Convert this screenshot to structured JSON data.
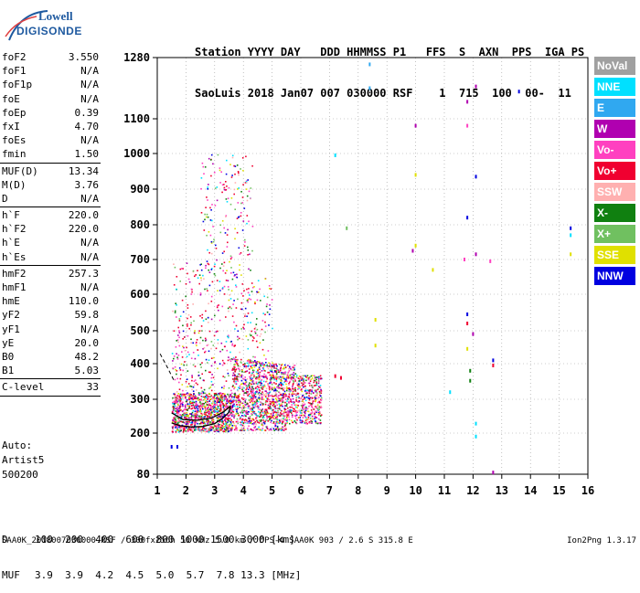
{
  "logo": {
    "line1": "Lowell",
    "line2": "DIGISONDE"
  },
  "header": {
    "line1": "Station YYYY DAY   DDD HHMMSS P1   FFS  S  AXN  PPS  IGA PS",
    "line2": "SaoLuis 2018 Jan07 007 030000 RSF    1  715  100  00-  11"
  },
  "params": {
    "group1": [
      {
        "name": "foF2",
        "value": "3.550"
      },
      {
        "name": "foF1",
        "value": "N/A"
      },
      {
        "name": "foF1p",
        "value": "N/A"
      },
      {
        "name": "foE",
        "value": "N/A"
      },
      {
        "name": "foEp",
        "value": "0.39"
      },
      {
        "name": "fxI",
        "value": "4.70"
      },
      {
        "name": "foEs",
        "value": "N/A"
      },
      {
        "name": "fmin",
        "value": "1.50"
      }
    ],
    "group2": [
      {
        "name": "MUF(D)",
        "value": "13.34"
      },
      {
        "name": "M(D)",
        "value": "3.76"
      },
      {
        "name": "D",
        "value": "N/A"
      }
    ],
    "group3": [
      {
        "name": "h`F",
        "value": "220.0"
      },
      {
        "name": "h`F2",
        "value": "220.0"
      },
      {
        "name": "h`E",
        "value": "N/A"
      },
      {
        "name": "h`Es",
        "value": "N/A"
      }
    ],
    "group4": [
      {
        "name": "hmF2",
        "value": "257.3"
      },
      {
        "name": "hmF1",
        "value": "N/A"
      },
      {
        "name": "hmE",
        "value": "110.0"
      },
      {
        "name": "yF2",
        "value": "59.8"
      },
      {
        "name": "yF1",
        "value": "N/A"
      },
      {
        "name": "yE",
        "value": "20.0"
      },
      {
        "name": "B0",
        "value": "48.2"
      },
      {
        "name": "B1",
        "value": "5.03"
      }
    ],
    "group5": [
      {
        "name": "C-level",
        "value": "33"
      }
    ]
  },
  "auto": {
    "line1": "Auto:",
    "line2": "Artist5",
    "line3": "500200"
  },
  "muf_table": {
    "d_label": "D",
    "d_values": "100  200  400  600  800 1000 1500 3000 [km]",
    "m_label": "MUF",
    "m_values": "3.9  3.9  4.2  4.5  5.0  5.7  7.8 13.3 [MHz]"
  },
  "footer": {
    "left": "SAA0K_2018007030000.RSF / 300fx256h 50 kHz 5.0 km / DPS-4 SAA0K 903 / 2.6 S 315.8 E",
    "right": "Ion2Png 1.3.17"
  },
  "legend": [
    {
      "label": "NoVal",
      "color": "#a0a0a0"
    },
    {
      "label": "NNE",
      "color": "#00e0ff"
    },
    {
      "label": "E",
      "color": "#30a8f0"
    },
    {
      "label": "W",
      "color": "#b000b0"
    },
    {
      "label": "Vo-",
      "color": "#ff40c0"
    },
    {
      "label": "Vo+",
      "color": "#f00030"
    },
    {
      "label": "SSW",
      "color": "#ffb0b0"
    },
    {
      "label": "X-",
      "color": "#108010"
    },
    {
      "label": "X+",
      "color": "#70c060"
    },
    {
      "label": "SSE",
      "color": "#e0e000"
    },
    {
      "label": "NNW",
      "color": "#0000e0"
    }
  ],
  "chart_data": {
    "type": "scatter",
    "title": "",
    "xlabel": "",
    "ylabel": "",
    "xlim": [
      1,
      16
    ],
    "ylim": [
      80,
      1280
    ],
    "xticks": [
      1,
      2,
      3,
      4,
      5,
      6,
      7,
      8,
      9,
      10,
      11,
      12,
      13,
      14,
      15,
      16
    ],
    "yticks": [
      80,
      200,
      300,
      400,
      500,
      600,
      700,
      800,
      900,
      1000,
      1100,
      1280
    ],
    "y_scale": "log-like (ionogram virtual height)",
    "grid": true,
    "trace": {
      "name": "",
      "color": "#000000",
      "points": [
        [
          1.5,
          230
        ],
        [
          1.8,
          222
        ],
        [
          2.2,
          218
        ],
        [
          2.6,
          220
        ],
        [
          3.0,
          228
        ],
        [
          3.3,
          245
        ],
        [
          3.5,
          262
        ],
        [
          3.55,
          280
        ]
      ]
    },
    "trace_upper": [
      [
        1.5,
        260
      ],
      [
        1.9,
        240
      ],
      [
        2.4,
        238
      ],
      [
        2.9,
        245
      ],
      [
        3.3,
        262
      ],
      [
        3.55,
        280
      ]
    ],
    "dashed_line": [
      [
        1.1,
        430
      ],
      [
        1.35,
        390
      ],
      [
        1.6,
        350
      ]
    ],
    "scatter_regions": [
      {
        "xmin": 1.5,
        "xmax": 3.6,
        "ymin": 205,
        "ymax": 320,
        "density": "high"
      },
      {
        "xmin": 1.5,
        "xmax": 5.5,
        "ymin": 210,
        "ymax": 1000,
        "density": "medium"
      },
      {
        "xmin": 3.6,
        "xmax": 6.7,
        "ymin": 230,
        "ymax": 420,
        "density": "medium"
      }
    ],
    "isolated_points": [
      {
        "x": 8.4,
        "y": 1260,
        "color": "#30a8f0"
      },
      {
        "x": 8.4,
        "y": 1190,
        "color": "#30a8f0"
      },
      {
        "x": 12.1,
        "y": 1195,
        "color": "#b000b0"
      },
      {
        "x": 13.6,
        "y": 1180,
        "color": "#0000e0"
      },
      {
        "x": 10.0,
        "y": 1080,
        "color": "#b000b0"
      },
      {
        "x": 11.8,
        "y": 1150,
        "color": "#b000b0"
      },
      {
        "x": 11.8,
        "y": 1080,
        "color": "#ff40c0"
      },
      {
        "x": 7.2,
        "y": 995,
        "color": "#00e0ff"
      },
      {
        "x": 10.0,
        "y": 940,
        "color": "#e0e000"
      },
      {
        "x": 12.1,
        "y": 935,
        "color": "#0000e0"
      },
      {
        "x": 11.8,
        "y": 820,
        "color": "#0000e0"
      },
      {
        "x": 7.6,
        "y": 790,
        "color": "#70c060"
      },
      {
        "x": 15.4,
        "y": 790,
        "color": "#0000e0"
      },
      {
        "x": 15.4,
        "y": 770,
        "color": "#00e0ff"
      },
      {
        "x": 10.0,
        "y": 740,
        "color": "#e0e000"
      },
      {
        "x": 9.9,
        "y": 725,
        "color": "#b000b0"
      },
      {
        "x": 12.1,
        "y": 715,
        "color": "#b000b0"
      },
      {
        "x": 11.7,
        "y": 700,
        "color": "#ff40c0"
      },
      {
        "x": 15.4,
        "y": 715,
        "color": "#e0e000"
      },
      {
        "x": 10.6,
        "y": 670,
        "color": "#e0e000"
      },
      {
        "x": 12.6,
        "y": 695,
        "color": "#ff40c0"
      },
      {
        "x": 8.6,
        "y": 530,
        "color": "#e0e000"
      },
      {
        "x": 11.8,
        "y": 520,
        "color": "#f00030"
      },
      {
        "x": 11.8,
        "y": 545,
        "color": "#0000e0"
      },
      {
        "x": 12.0,
        "y": 490,
        "color": "#b000b0"
      },
      {
        "x": 8.6,
        "y": 455,
        "color": "#e0e000"
      },
      {
        "x": 11.8,
        "y": 445,
        "color": "#e0e000"
      },
      {
        "x": 12.7,
        "y": 410,
        "color": "#0000e0"
      },
      {
        "x": 12.7,
        "y": 395,
        "color": "#f00030"
      },
      {
        "x": 11.9,
        "y": 380,
        "color": "#108010"
      },
      {
        "x": 11.9,
        "y": 352,
        "color": "#108010"
      },
      {
        "x": 11.2,
        "y": 320,
        "color": "#00e0ff"
      },
      {
        "x": 12.1,
        "y": 228,
        "color": "#00e0ff"
      },
      {
        "x": 12.1,
        "y": 190,
        "color": "#00e0ff"
      },
      {
        "x": 12.7,
        "y": 85,
        "color": "#b000b0"
      },
      {
        "x": 1.5,
        "y": 160,
        "color": "#0000e0"
      },
      {
        "x": 1.7,
        "y": 160,
        "color": "#0000e0"
      },
      {
        "x": 7.2,
        "y": 365,
        "color": "#f00030"
      },
      {
        "x": 7.4,
        "y": 360,
        "color": "#f00030"
      }
    ]
  }
}
